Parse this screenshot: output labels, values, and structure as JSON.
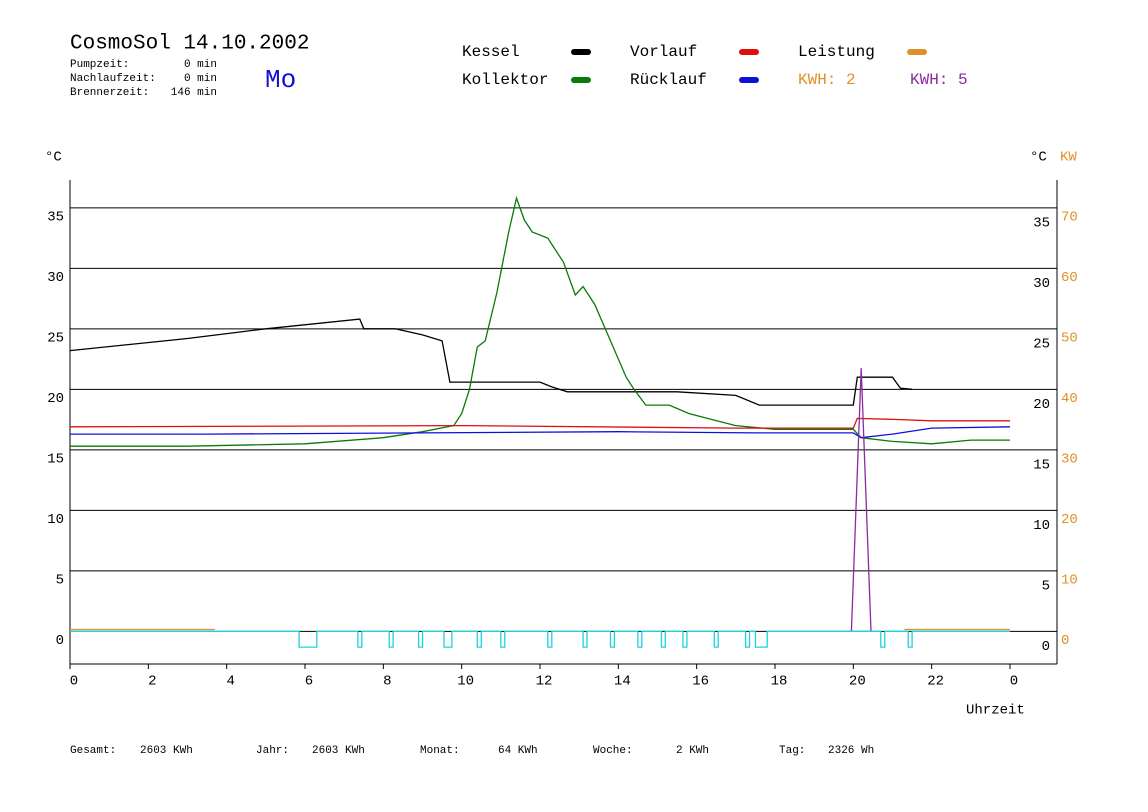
{
  "chart_data": {
    "type": "line",
    "title": "CosmoSol 14.10.2002",
    "weekday": "Mo",
    "stats": [
      {
        "label": "Pumpzeit:",
        "value": "0 min"
      },
      {
        "label": "Nachlaufzeit:",
        "value": "0 min"
      },
      {
        "label": "Brennerzeit:",
        "value": "146 min"
      }
    ],
    "kwh_labels": [
      {
        "text": "KWH: 2",
        "color": "#e0902a"
      },
      {
        "text": "KWH: 5",
        "color": "#8a2c9e"
      }
    ],
    "y_label": "°C",
    "y2_unit_label": "°C",
    "y2_label": "KW",
    "x_label": "Uhrzeit",
    "totals": [
      {
        "label": "Gesamt:",
        "value": "2603 KWh"
      },
      {
        "label": "Jahr:",
        "value": "2603 KWh"
      },
      {
        "label": "Monat:",
        "value": "64 KWh"
      },
      {
        "label": "Woche:",
        "value": "2 KWh"
      },
      {
        "label": "Tag:",
        "value": "2326 Wh"
      }
    ],
    "xlim": [
      0,
      25.2
    ],
    "xticks": [
      0,
      2,
      4,
      6,
      8,
      10,
      12,
      14,
      16,
      18,
      20,
      22,
      {
        "value": 24,
        "label": "0"
      }
    ],
    "ylim": [
      -2.7,
      37.3
    ],
    "yticks": [
      0,
      5,
      10,
      15,
      20,
      25,
      30,
      35
    ],
    "y2lim": [
      -5.4,
      74.6
    ],
    "y2ticks": [
      0,
      10,
      20,
      30,
      40,
      50,
      60,
      70
    ],
    "y2_color": "#e0902a",
    "grid": true,
    "series": [
      {
        "name": "Kessel",
        "color": "#000000",
        "x": [
          0,
          3,
          5,
          7.4,
          7.5,
          8.3,
          9,
          9.5,
          9.7,
          12,
          12.3,
          12.7,
          15.5,
          17,
          17.6,
          20,
          20.1,
          21,
          21.2,
          21.5
        ],
        "values": [
          23.2,
          24.2,
          25.0,
          25.8,
          25.0,
          25.0,
          24.5,
          24.0,
          20.6,
          20.6,
          20.2,
          19.8,
          19.8,
          19.5,
          18.7,
          18.7,
          21.0,
          21.0,
          20.1,
          20.0
        ]
      },
      {
        "name": "Kollektor",
        "color": "#0a7a0a",
        "x": [
          0,
          3,
          6,
          8,
          9,
          9.8,
          10,
          10.2,
          10.4,
          10.6,
          10.9,
          11.2,
          11.4,
          11.6,
          11.8,
          12.2,
          12.6,
          12.9,
          13.1,
          13.4,
          13.8,
          14.2,
          14.4,
          14.7,
          15.3,
          15.8,
          16.4,
          17,
          18,
          20,
          20.2,
          21,
          22,
          23,
          24
        ],
        "values": [
          15.3,
          15.3,
          15.5,
          16.0,
          16.5,
          17.0,
          18.0,
          20.0,
          23.5,
          24.0,
          28.0,
          33.0,
          35.8,
          34.0,
          33.0,
          32.5,
          30.5,
          27.8,
          28.5,
          27.0,
          24.0,
          21.0,
          20.0,
          18.7,
          18.7,
          18.0,
          17.5,
          17.0,
          16.7,
          16.7,
          16.0,
          15.7,
          15.5,
          15.8,
          15.8
        ]
      },
      {
        "name": "Vorlauf",
        "color": "#dd1010",
        "x": [
          0,
          10,
          17,
          20,
          20.1,
          21.2,
          22,
          24
        ],
        "values": [
          16.9,
          17.0,
          16.8,
          16.8,
          17.6,
          17.5,
          17.4,
          17.4
        ]
      },
      {
        "name": "Rücklauf",
        "color": "#1010dd",
        "x": [
          0,
          3.5,
          9,
          14,
          17.5,
          20,
          20.2,
          21,
          22,
          24
        ],
        "values": [
          16.3,
          16.3,
          16.4,
          16.5,
          16.4,
          16.4,
          16.0,
          16.3,
          16.8,
          16.9
        ]
      },
      {
        "name": "Leistung",
        "color": "#e0902a",
        "axis": "y2",
        "x": [
          0,
          3.7,
          3.8,
          21.3,
          24
        ],
        "values": [
          0.3,
          0.3,
          null,
          0.3,
          0.3
        ]
      },
      {
        "color": "#8a2c9e",
        "axis": "y2",
        "x": [
          19.95,
          20.2,
          20.45
        ],
        "values": [
          0,
          43.5,
          0
        ]
      },
      {
        "color": "#22d0e0",
        "x": [
          0,
          5.85,
          5.85,
          6.3,
          6.3,
          7.35,
          7.35,
          7.45,
          7.45,
          8.15,
          8.15,
          8.25,
          8.25,
          8.9,
          8.9,
          9.0,
          9.0,
          9.55,
          9.55,
          9.75,
          9.75,
          10.4,
          10.4,
          10.5,
          10.5,
          11.0,
          11.0,
          11.1,
          11.1,
          12.2,
          12.2,
          12.3,
          12.3,
          13.1,
          13.1,
          13.2,
          13.2,
          13.8,
          13.8,
          13.9,
          13.9,
          14.5,
          14.5,
          14.6,
          14.6,
          15.1,
          15.1,
          15.2,
          15.2,
          15.65,
          15.65,
          15.75,
          15.75,
          16.45,
          16.45,
          16.55,
          16.55,
          17.25,
          17.25,
          17.35,
          17.35,
          17.5,
          17.5,
          17.8,
          17.8,
          20.7,
          20.7,
          20.8,
          20.8,
          21.4,
          21.4,
          21.5,
          21.5,
          24
        ],
        "values": [
          0,
          0,
          -1.3,
          -1.3,
          0,
          0,
          -1.3,
          -1.3,
          0,
          0,
          -1.3,
          -1.3,
          0,
          0,
          -1.3,
          -1.3,
          0,
          0,
          -1.3,
          -1.3,
          0,
          0,
          -1.3,
          -1.3,
          0,
          0,
          -1.3,
          -1.3,
          0,
          0,
          -1.3,
          -1.3,
          0,
          0,
          -1.3,
          -1.3,
          0,
          0,
          -1.3,
          -1.3,
          0,
          0,
          -1.3,
          -1.3,
          0,
          0,
          -1.3,
          -1.3,
          0,
          0,
          -1.3,
          -1.3,
          0,
          0,
          -1.3,
          -1.3,
          0,
          0,
          -1.3,
          -1.3,
          0,
          0,
          -1.3,
          -1.3,
          0,
          0,
          -1.3,
          -1.3,
          0,
          0,
          -1.3,
          -1.3,
          0,
          0
        ]
      }
    ]
  }
}
